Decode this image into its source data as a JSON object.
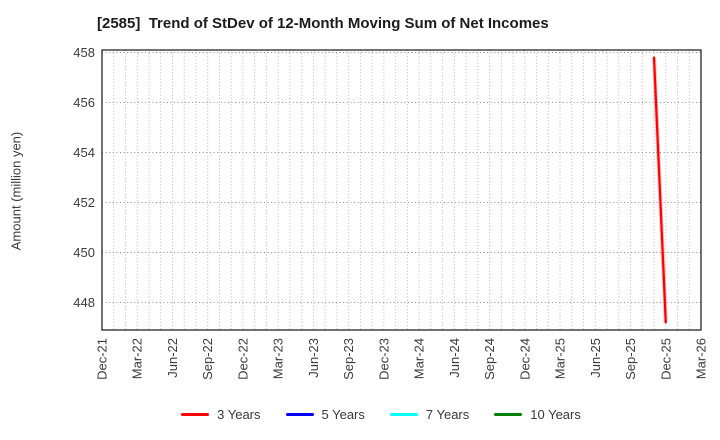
{
  "title": "[2585]  Trend of StDev of 12-Month Moving Sum of Net Incomes",
  "y_axis": {
    "label": "Amount (million yen)",
    "ticks": [
      448,
      450,
      452,
      454,
      456,
      458
    ]
  },
  "x_axis": {
    "tick_labels": [
      "Dec-21",
      "Mar-22",
      "Jun-22",
      "Sep-22",
      "Dec-22",
      "Mar-23",
      "Jun-23",
      "Sep-23",
      "Dec-23",
      "Mar-24",
      "Jun-24",
      "Sep-24",
      "Dec-24",
      "Mar-25",
      "Jun-25",
      "Sep-25",
      "Dec-25",
      "Mar-26"
    ],
    "months_span": 51
  },
  "chart_data": {
    "type": "line",
    "title": "[2585]  Trend of StDev of 12-Month Moving Sum of Net Incomes",
    "xlabel": "",
    "ylabel": "Amount (million yen)",
    "ylim": [
      446.9,
      458.1
    ],
    "x_range": [
      "Dec-21",
      "Mar-26"
    ],
    "x_tick_labels": [
      "Dec-21",
      "Mar-22",
      "Jun-22",
      "Sep-22",
      "Dec-22",
      "Mar-23",
      "Jun-23",
      "Sep-23",
      "Dec-23",
      "Mar-24",
      "Jun-24",
      "Sep-24",
      "Dec-24",
      "Mar-25",
      "Jun-25",
      "Sep-25",
      "Dec-25",
      "Mar-26"
    ],
    "grid": {
      "vertical": "monthly dotted",
      "horizontal": "every 2 units dotted"
    },
    "legend_position": "bottom center",
    "series": [
      {
        "name": "3 Years",
        "color": "#ff0000",
        "points": [
          [
            "Nov-25",
            457.8
          ],
          [
            "Dec-25",
            447.2
          ]
        ]
      },
      {
        "name": "5 Years",
        "color": "#0000ff",
        "points": []
      },
      {
        "name": "7 Years",
        "color": "#00ffff",
        "points": []
      },
      {
        "name": "10 Years",
        "color": "#008000",
        "points": []
      }
    ]
  },
  "colors": {
    "frame": "#262626",
    "grid_vertical": "#b8b8b8",
    "grid_horizontal": "#8e8e8e",
    "tick_text": "#3c3c3c",
    "title_text": "#1c1c1c"
  }
}
